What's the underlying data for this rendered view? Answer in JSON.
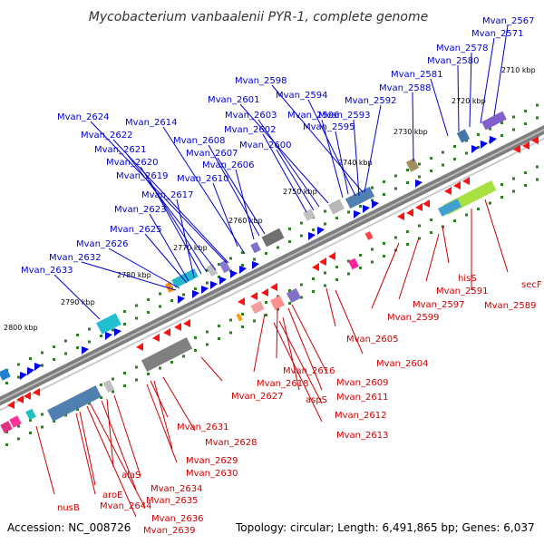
{
  "title": "Mycobacterium vanbaalenii PYR-1, complete genome",
  "footer": {
    "accession": "Accession: NC_008726",
    "summary": "Topology: circular; Length: 6,491,865 bp; Genes: 6,037"
  },
  "colors": {
    "backbone": "#7d7d7d",
    "forward_label": "#0000cc",
    "reverse_label": "#cc0000",
    "dots": "#2a7f1e"
  },
  "ticks": [
    "2710 kbp",
    "2720 kbp",
    "2730 kbp",
    "2740 kbp",
    "2750 kbp",
    "2760 kbp",
    "2770 kbp",
    "2780 kbp",
    "2790 kbp",
    "2800 kbp"
  ],
  "forward_genes": [
    "Mvan_2567",
    "Mvan_2571",
    "Mvan_2578",
    "Mvan_2580",
    "Mvan_2581",
    "Mvan_2588",
    "Mvan_2598",
    "Mvan_2594",
    "Mvan_2592",
    "Mvan_2593",
    "Mvan_2601",
    "Mvan_2596",
    "Mvan_2603",
    "Mvan_2595",
    "Mvan_2602",
    "Mvan_2600",
    "Mvan_2624",
    "Mvan_2614",
    "Mvan_2622",
    "Mvan_2608",
    "Mvan_2621",
    "Mvan_2607",
    "Mvan_2620",
    "Mvan_2606",
    "Mvan_2619",
    "Mvan_2610",
    "Mvan_2617",
    "Mvan_2623",
    "Mvan_2625",
    "Mvan_2626",
    "Mvan_2632",
    "Mvan_2633"
  ],
  "reverse_genes": [
    "secF",
    "Mvan_2589",
    "hisS",
    "Mvan_2591",
    "Mvan_2597",
    "Mvan_2599",
    "Mvan_2605",
    "Mvan_2604",
    "Mvan_2609",
    "Mvan_2611",
    "Mvan_2616",
    "Mvan_2618",
    "aspS",
    "Mvan_2612",
    "Mvan_2613",
    "Mvan_2627",
    "Mvan_2631",
    "Mvan_2628",
    "Mvan_2629",
    "Mvan_2630",
    "Mvan_2634",
    "alaS",
    "Mvan_2635",
    "Mvan_2636",
    "Mvan_2639",
    "aroE",
    "Mvan_2644",
    "nusB"
  ]
}
